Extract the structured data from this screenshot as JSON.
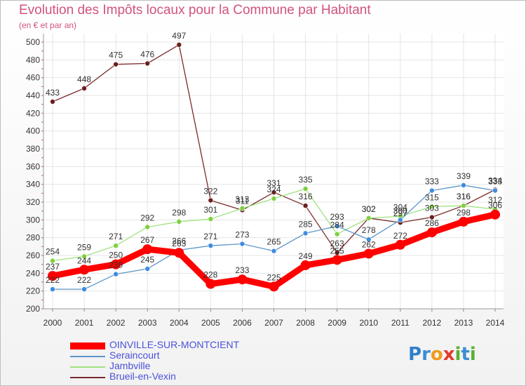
{
  "title": "Evolution des Impôts locaux pour la Commune par Habitant",
  "subtitle": "(en € et par an)",
  "brand": [
    "P",
    "r",
    "o",
    "x",
    "i",
    "t",
    "i"
  ],
  "chart_data": {
    "type": "line",
    "title": "Evolution des Impôts locaux pour la Commune par Habitant",
    "subtitle": "(en € et par an)",
    "xlabel": "",
    "ylabel": "",
    "x": [
      "2000",
      "2001",
      "2002",
      "2003",
      "2004",
      "2005",
      "2006",
      "2007",
      "2008",
      "2009",
      "2010",
      "2011",
      "2012",
      "2013",
      "2014"
    ],
    "ylim": [
      200,
      500
    ],
    "yticks": [
      200,
      220,
      240,
      260,
      280,
      300,
      320,
      340,
      360,
      380,
      400,
      420,
      440,
      460,
      480,
      500
    ],
    "grid": true,
    "series": [
      {
        "name": "OINVILLE-SUR-MONTCIENT",
        "color": "#ff0000",
        "marker_color": "#ff0000",
        "values": [
          237,
          244,
          250,
          267,
          263,
          228,
          233,
          225,
          249,
          255,
          262,
          272,
          286,
          298,
          306
        ]
      },
      {
        "name": "Seraincourt",
        "color": "#5b95c9",
        "marker_color": "#3f8be0",
        "values": [
          222,
          222,
          239,
          245,
          266,
          271,
          273,
          265,
          285,
          293,
          278,
          300,
          333,
          339,
          333
        ]
      },
      {
        "name": "Jambville",
        "color": "#9fe27f",
        "marker_color": "#7dd13f",
        "values": [
          254,
          259,
          271,
          292,
          298,
          301,
          313,
          324,
          335,
          284,
          302,
          304,
          315,
          316,
          312
        ]
      },
      {
        "name": "Brueil-en-Vexin",
        "color": "#7a2a2a",
        "marker_color": "#6b1f1f",
        "values": [
          433,
          448,
          475,
          476,
          497,
          322,
          311,
          331,
          316,
          263,
          302,
          297,
          303,
          316,
          334
        ]
      }
    ],
    "legend": [
      "OINVILLE-SUR-MONTCIENT",
      "Seraincourt",
      "Jambville",
      "Brueil-en-Vexin"
    ]
  }
}
